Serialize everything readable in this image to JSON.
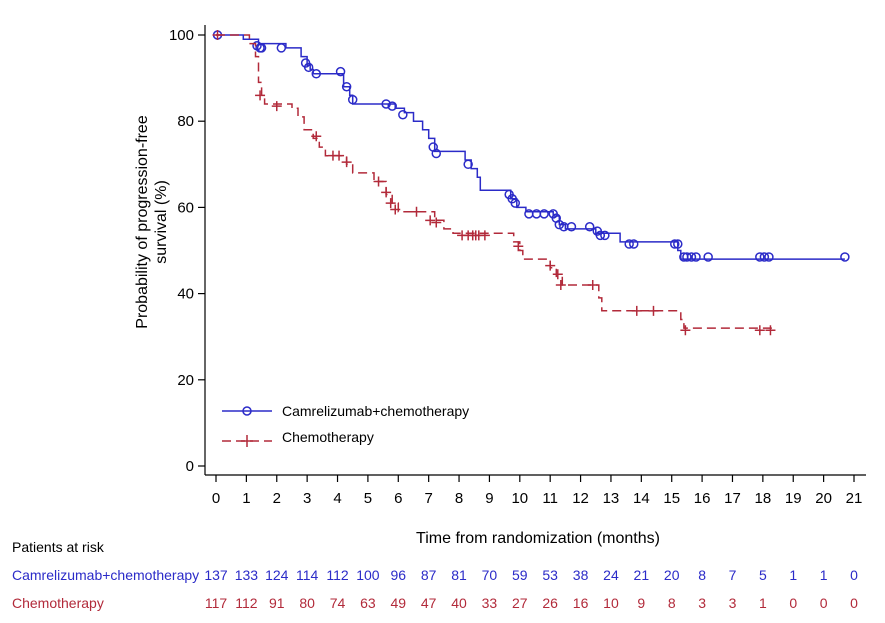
{
  "chart_data": {
    "type": "line",
    "subtype": "kaplan-meier",
    "title": "",
    "xlabel": "Time from randomization (months)",
    "ylabel_line1": "Probability of progression-free",
    "ylabel_line2": "survival (%)",
    "xlim": [
      0,
      21
    ],
    "ylim": [
      0,
      100
    ],
    "x_ticks": [
      "0",
      "1",
      "2",
      "3",
      "4",
      "5",
      "6",
      "7",
      "8",
      "9",
      "10",
      "11",
      "12",
      "13",
      "14",
      "15",
      "16",
      "17",
      "18",
      "19",
      "20",
      "21"
    ],
    "y_ticks": [
      "0",
      "20",
      "40",
      "60",
      "80",
      "100"
    ],
    "legend_position": "bottom-left",
    "series": [
      {
        "name": "Camrelizumab+chemotherapy",
        "color": "#2b2bc8",
        "line_style": "solid",
        "marker": "circle",
        "steps": [
          [
            0,
            100
          ],
          [
            0.9,
            99
          ],
          [
            1.4,
            98
          ],
          [
            2.3,
            97
          ],
          [
            2.8,
            95
          ],
          [
            3.0,
            93
          ],
          [
            3.1,
            92
          ],
          [
            3.2,
            91
          ],
          [
            4.2,
            88
          ],
          [
            4.4,
            86
          ],
          [
            4.5,
            84
          ],
          [
            5.9,
            83
          ],
          [
            6.2,
            82
          ],
          [
            6.5,
            80
          ],
          [
            6.8,
            78
          ],
          [
            7.0,
            76
          ],
          [
            7.2,
            73
          ],
          [
            8.2,
            71
          ],
          [
            8.4,
            69
          ],
          [
            8.6,
            67
          ],
          [
            8.7,
            64
          ],
          [
            9.7,
            62
          ],
          [
            9.9,
            60
          ],
          [
            10.2,
            59
          ],
          [
            11.1,
            58
          ],
          [
            11.3,
            56
          ],
          [
            11.5,
            55
          ],
          [
            12.3,
            55
          ],
          [
            12.5,
            54
          ],
          [
            13.3,
            52
          ],
          [
            15.2,
            50
          ],
          [
            15.3,
            48
          ],
          [
            20.7,
            48
          ]
        ],
        "censors": [
          [
            0.05,
            100
          ],
          [
            1.35,
            97.5
          ],
          [
            1.45,
            97
          ],
          [
            1.5,
            97
          ],
          [
            2.15,
            97
          ],
          [
            2.95,
            93.5
          ],
          [
            3.05,
            92.5
          ],
          [
            3.3,
            91
          ],
          [
            4.1,
            91.5
          ],
          [
            4.3,
            88
          ],
          [
            4.5,
            85
          ],
          [
            5.6,
            84
          ],
          [
            5.8,
            83.5
          ],
          [
            6.15,
            81.5
          ],
          [
            7.15,
            74
          ],
          [
            7.25,
            72.5
          ],
          [
            8.3,
            70
          ],
          [
            9.65,
            63
          ],
          [
            9.75,
            62
          ],
          [
            9.85,
            61
          ],
          [
            10.3,
            58.5
          ],
          [
            10.55,
            58.5
          ],
          [
            10.8,
            58.5
          ],
          [
            11.1,
            58.5
          ],
          [
            11.2,
            57.5
          ],
          [
            11.3,
            56
          ],
          [
            11.45,
            55.5
          ],
          [
            11.7,
            55.5
          ],
          [
            12.3,
            55.5
          ],
          [
            12.55,
            54.5
          ],
          [
            12.65,
            53.5
          ],
          [
            12.8,
            53.5
          ],
          [
            13.6,
            51.5
          ],
          [
            13.75,
            51.5
          ],
          [
            15.1,
            51.5
          ],
          [
            15.2,
            51.5
          ],
          [
            15.4,
            48.5
          ],
          [
            15.5,
            48.5
          ],
          [
            15.65,
            48.5
          ],
          [
            15.8,
            48.5
          ],
          [
            16.2,
            48.5
          ],
          [
            17.9,
            48.5
          ],
          [
            18.05,
            48.5
          ],
          [
            18.2,
            48.5
          ],
          [
            20.7,
            48.5
          ]
        ]
      },
      {
        "name": "Chemotherapy",
        "color": "#b22a3a",
        "line_style": "dashed",
        "marker": "plus",
        "steps": [
          [
            0,
            100
          ],
          [
            1.1,
            98
          ],
          [
            1.3,
            95
          ],
          [
            1.4,
            89
          ],
          [
            1.5,
            86
          ],
          [
            1.6,
            84
          ],
          [
            2.5,
            83
          ],
          [
            2.7,
            81
          ],
          [
            2.9,
            78
          ],
          [
            3.2,
            76
          ],
          [
            3.4,
            74
          ],
          [
            3.6,
            72
          ],
          [
            4.3,
            70
          ],
          [
            4.5,
            68
          ],
          [
            5.2,
            66
          ],
          [
            5.6,
            63
          ],
          [
            5.8,
            61
          ],
          [
            6.0,
            59
          ],
          [
            7.2,
            57
          ],
          [
            7.5,
            55
          ],
          [
            7.8,
            54
          ],
          [
            9.8,
            52
          ],
          [
            10.0,
            50
          ],
          [
            10.1,
            48
          ],
          [
            11.0,
            46
          ],
          [
            11.2,
            44
          ],
          [
            11.4,
            42
          ],
          [
            12.6,
            39
          ],
          [
            12.7,
            36
          ],
          [
            15.3,
            34
          ],
          [
            15.4,
            32
          ],
          [
            18.3,
            32
          ]
        ],
        "censors": [
          [
            0.05,
            100
          ],
          [
            1.45,
            86
          ],
          [
            2.0,
            83.5
          ],
          [
            3.3,
            76.5
          ],
          [
            3.85,
            72
          ],
          [
            4.05,
            72
          ],
          [
            4.3,
            70.5
          ],
          [
            5.35,
            66
          ],
          [
            5.6,
            63.5
          ],
          [
            5.75,
            61
          ],
          [
            5.9,
            59.5
          ],
          [
            6.6,
            59
          ],
          [
            7.05,
            57
          ],
          [
            7.25,
            56.5
          ],
          [
            8.1,
            53.5
          ],
          [
            8.3,
            53.5
          ],
          [
            8.45,
            53.5
          ],
          [
            8.55,
            53.5
          ],
          [
            8.65,
            53.5
          ],
          [
            8.85,
            53.5
          ],
          [
            9.95,
            51
          ],
          [
            11.0,
            46.5
          ],
          [
            11.25,
            44.5
          ],
          [
            11.35,
            42
          ],
          [
            12.4,
            42
          ],
          [
            13.85,
            36
          ],
          [
            14.4,
            36
          ],
          [
            15.45,
            31.5
          ],
          [
            17.9,
            31.5
          ],
          [
            18.25,
            31.5
          ]
        ]
      }
    ],
    "at_risk": {
      "title": "Patients at risk",
      "times": [
        "0",
        "1",
        "2",
        "3",
        "4",
        "5",
        "6",
        "7",
        "8",
        "9",
        "10",
        "11",
        "12",
        "13",
        "14",
        "15",
        "16",
        "17",
        "18",
        "19",
        "20",
        "21"
      ],
      "rows": [
        {
          "label": "Camrelizumab+chemotherapy",
          "color": "#2b2bc8",
          "values": [
            "137",
            "133",
            "124",
            "114",
            "112",
            "100",
            "96",
            "87",
            "81",
            "70",
            "59",
            "53",
            "38",
            "24",
            "21",
            "20",
            "8",
            "7",
            "5",
            "1",
            "1",
            "0"
          ]
        },
        {
          "label": "Chemotherapy",
          "color": "#b22a3a",
          "values": [
            "117",
            "112",
            "91",
            "80",
            "74",
            "63",
            "49",
            "47",
            "40",
            "33",
            "27",
            "26",
            "16",
            "10",
            "9",
            "8",
            "3",
            "3",
            "1",
            "0",
            "0",
            "0"
          ]
        }
      ]
    }
  }
}
